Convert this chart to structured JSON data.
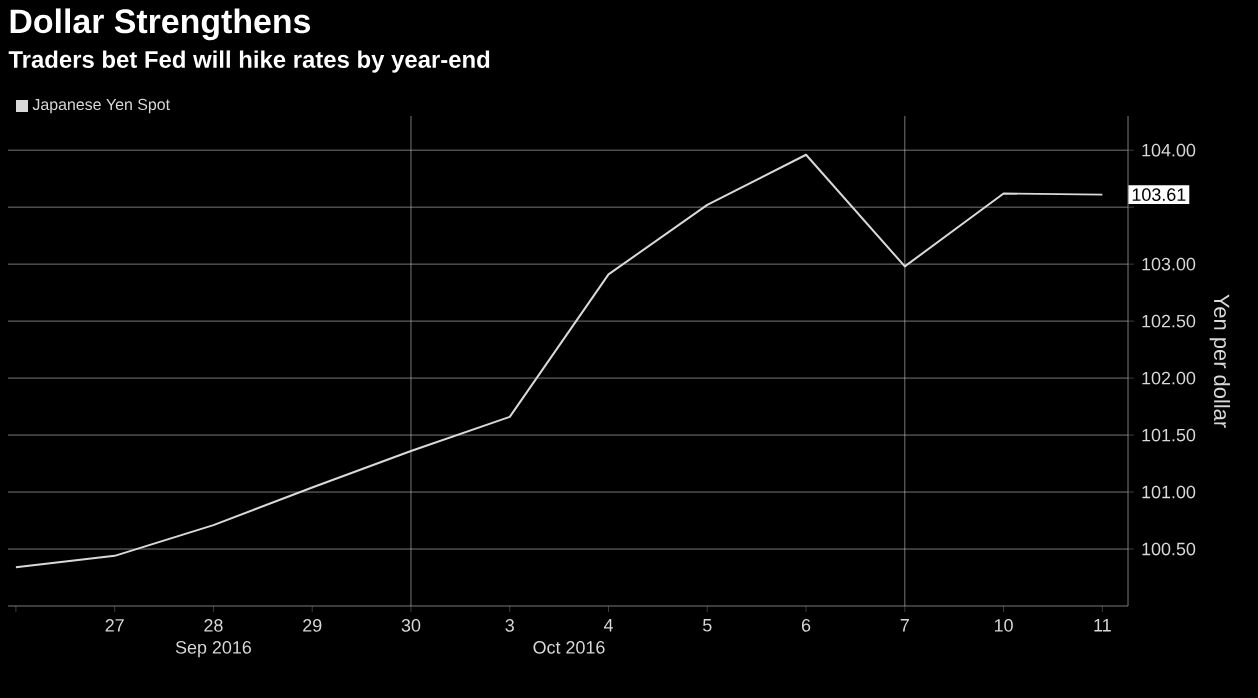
{
  "chart_data": {
    "type": "line",
    "title": "Dollar Strengthens",
    "subtitle": "Traders bet Fed will hike rates by year-end",
    "categories": [
      null,
      "27",
      "28",
      "29",
      "30",
      "3",
      "4",
      "5",
      "6",
      "7",
      "10",
      "11"
    ],
    "series": [
      {
        "name": "Japanese Yen Spot",
        "color": "#d9d9d9",
        "values": [
          100.34,
          100.44,
          100.71,
          101.04,
          101.36,
          101.66,
          102.91,
          103.52,
          103.96,
          102.98,
          103.62,
          103.61
        ],
        "value_labels": [
          null,
          null,
          null,
          null,
          null,
          null,
          null,
          null,
          null,
          null,
          null,
          "103.61"
        ]
      }
    ],
    "ylabel": "Yen per dollar",
    "ylim": [
      100.0,
      104.3
    ],
    "yticks": [
      {
        "value": 100.5,
        "label": "100.50"
      },
      {
        "value": 101,
        "label": "101.00"
      },
      {
        "value": 101.5,
        "label": "101.50"
      },
      {
        "value": 102,
        "label": "102.00"
      },
      {
        "value": 102.5,
        "label": "102.50"
      },
      {
        "value": 103,
        "label": "103.00"
      },
      {
        "value": 103.5,
        "label": null
      },
      {
        "value": 104,
        "label": "104.00"
      }
    ],
    "annotations": [
      "Sep 2016",
      "Oct 2016"
    ],
    "ref_lines": [
      {
        "axis": "x",
        "value": "30"
      },
      {
        "axis": "x",
        "value": "7"
      }
    ],
    "grid": "y",
    "legend": "top left",
    "marker": "none",
    "line_style": "solid"
  }
}
